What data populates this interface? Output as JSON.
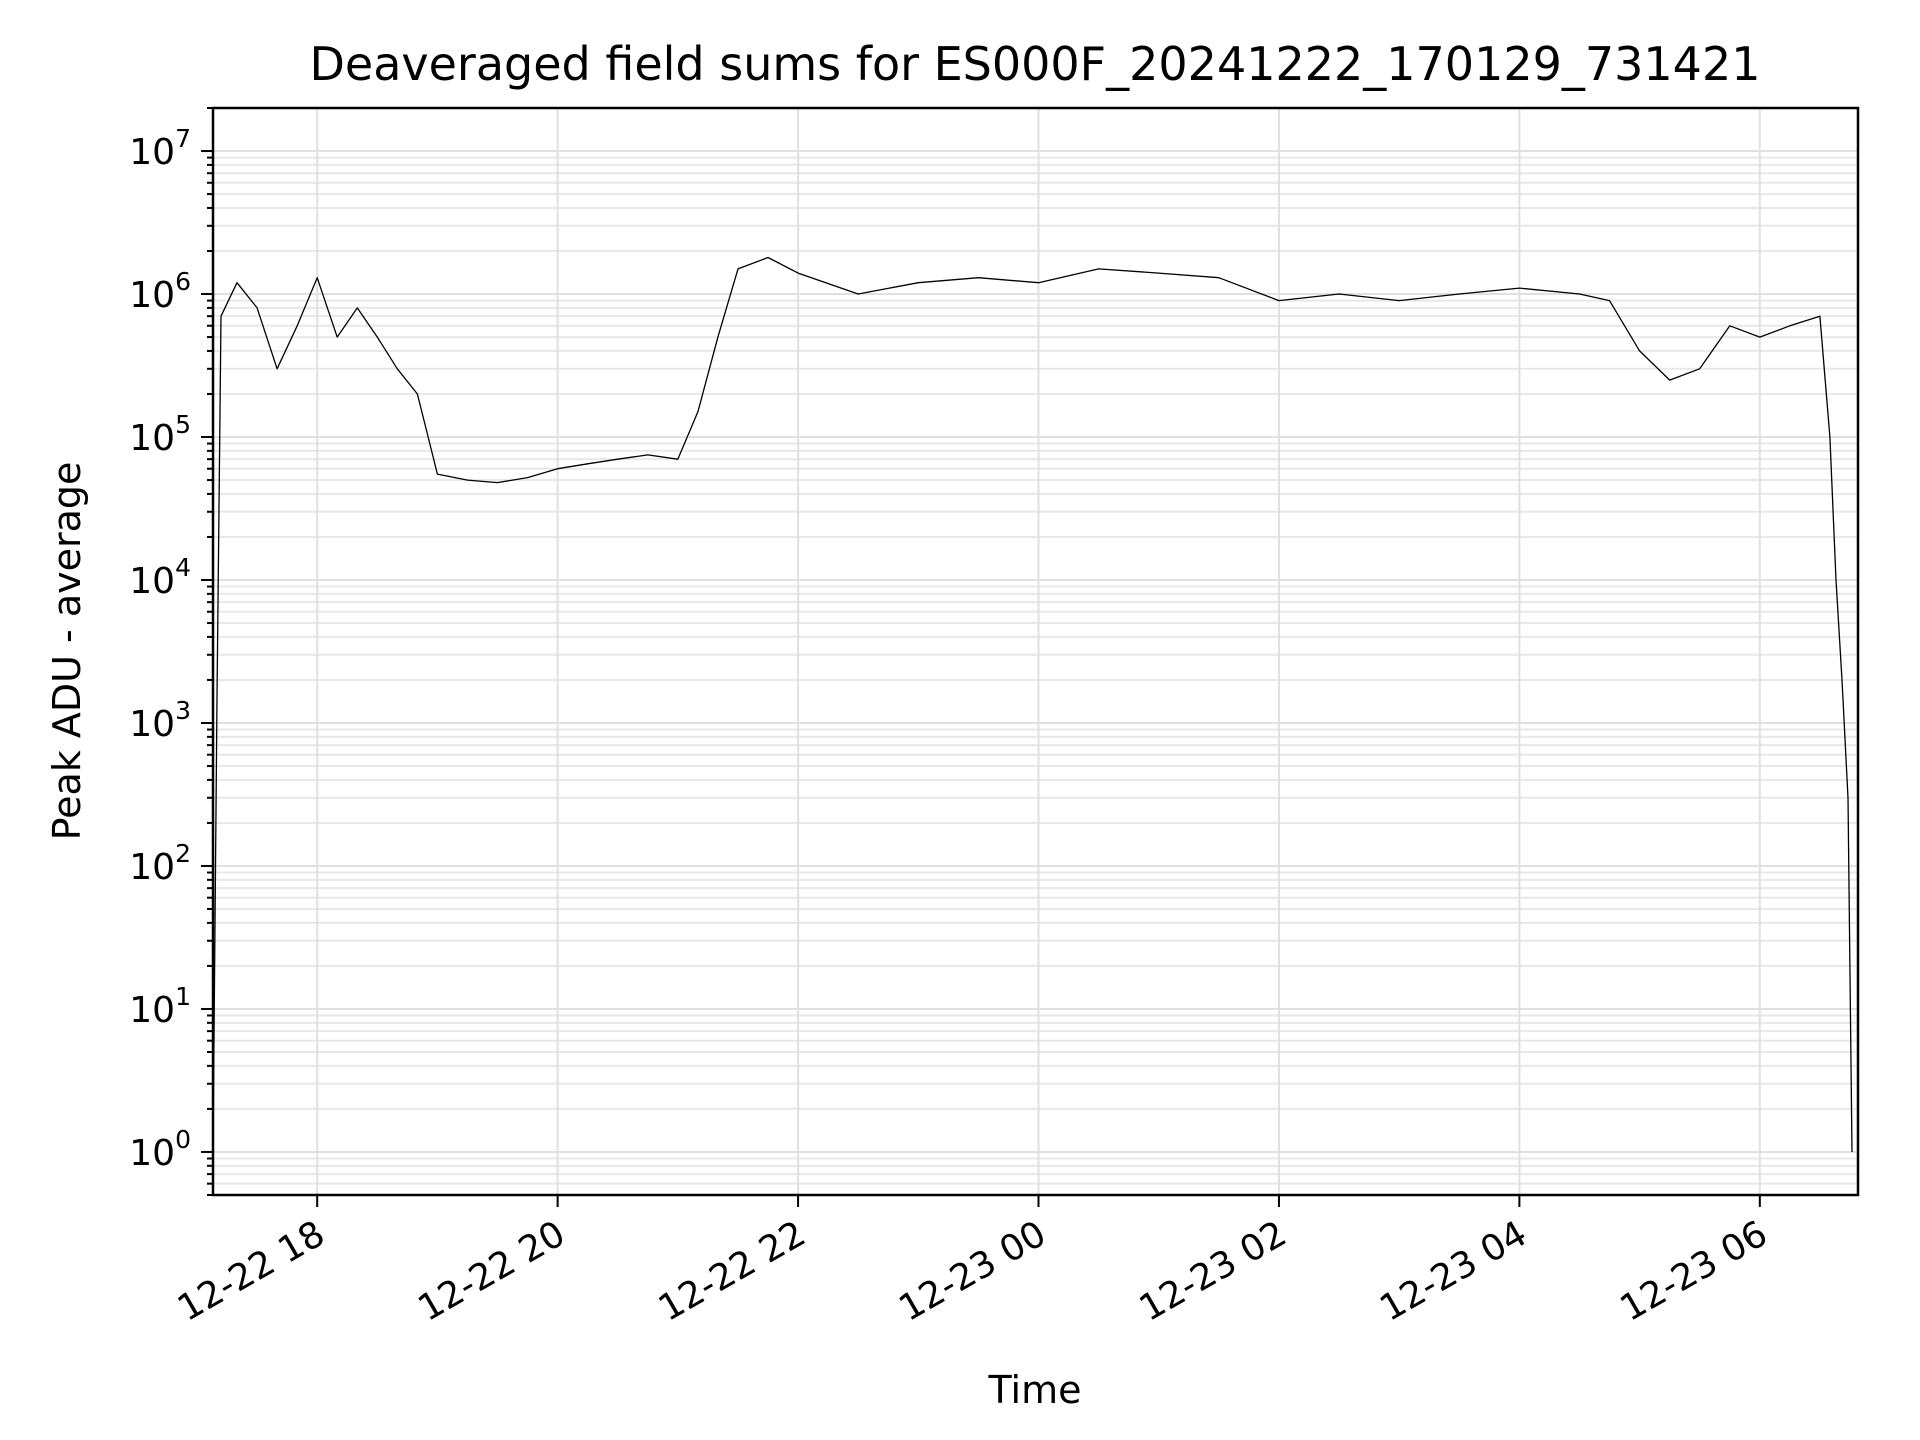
{
  "chart_data": {
    "type": "line",
    "title": "Deaveraged field sums for ES000F_20241222_170129_731421",
    "xlabel": "Time",
    "ylabel": "Peak ADU - average",
    "yscale": "log",
    "ylim": [
      0.5,
      20000000
    ],
    "xlim": [
      "2024-12-22 17:08",
      "2024-12-23 06:49"
    ],
    "grid": true,
    "x_ticks": [
      "12-22 18",
      "12-22 20",
      "12-22 22",
      "12-23 00",
      "12-23 02",
      "12-23 04",
      "12-23 06"
    ],
    "y_ticks": [
      {
        "base": "10",
        "exp": "0"
      },
      {
        "base": "10",
        "exp": "1"
      },
      {
        "base": "10",
        "exp": "2"
      },
      {
        "base": "10",
        "exp": "3"
      },
      {
        "base": "10",
        "exp": "4"
      },
      {
        "base": "10",
        "exp": "5"
      },
      {
        "base": "10",
        "exp": "6"
      },
      {
        "base": "10",
        "exp": "7"
      }
    ],
    "series": [
      {
        "color": "#000000",
        "x": [
          "2024-12-22 17:08",
          "2024-12-22 17:10",
          "2024-12-22 17:12",
          "2024-12-22 17:20",
          "2024-12-22 17:30",
          "2024-12-22 17:40",
          "2024-12-22 17:50",
          "2024-12-22 18:00",
          "2024-12-22 18:10",
          "2024-12-22 18:20",
          "2024-12-22 18:30",
          "2024-12-22 18:40",
          "2024-12-22 18:50",
          "2024-12-22 19:00",
          "2024-12-22 19:15",
          "2024-12-22 19:30",
          "2024-12-22 19:45",
          "2024-12-22 20:00",
          "2024-12-22 20:15",
          "2024-12-22 20:30",
          "2024-12-22 20:45",
          "2024-12-22 21:00",
          "2024-12-22 21:10",
          "2024-12-22 21:20",
          "2024-12-22 21:30",
          "2024-12-22 21:45",
          "2024-12-22 22:00",
          "2024-12-22 22:30",
          "2024-12-22 23:00",
          "2024-12-22 23:30",
          "2024-12-23 00:00",
          "2024-12-23 00:30",
          "2024-12-23 01:00",
          "2024-12-23 01:30",
          "2024-12-23 02:00",
          "2024-12-23 02:30",
          "2024-12-23 03:00",
          "2024-12-23 03:30",
          "2024-12-23 04:00",
          "2024-12-23 04:30",
          "2024-12-23 04:45",
          "2024-12-23 05:00",
          "2024-12-23 05:15",
          "2024-12-23 05:30",
          "2024-12-23 05:45",
          "2024-12-23 06:00",
          "2024-12-23 06:15",
          "2024-12-23 06:30",
          "2024-12-23 06:35",
          "2024-12-23 06:38",
          "2024-12-23 06:41",
          "2024-12-23 06:44",
          "2024-12-23 06:46"
        ],
        "y": [
          1,
          1500,
          700000,
          1200000,
          800000,
          300000,
          600000,
          1300000,
          500000,
          800000,
          500000,
          300000,
          200000,
          55000,
          50000,
          48000,
          52000,
          60000,
          65000,
          70000,
          75000,
          70000,
          150000,
          500000,
          1500000,
          1800000,
          1400000,
          1000000,
          1200000,
          1300000,
          1200000,
          1500000,
          1400000,
          1300000,
          900000,
          1000000,
          900000,
          1000000,
          1100000,
          1000000,
          900000,
          400000,
          250000,
          300000,
          600000,
          500000,
          600000,
          700000,
          100000,
          10000,
          2000,
          300,
          1
        ]
      }
    ]
  }
}
